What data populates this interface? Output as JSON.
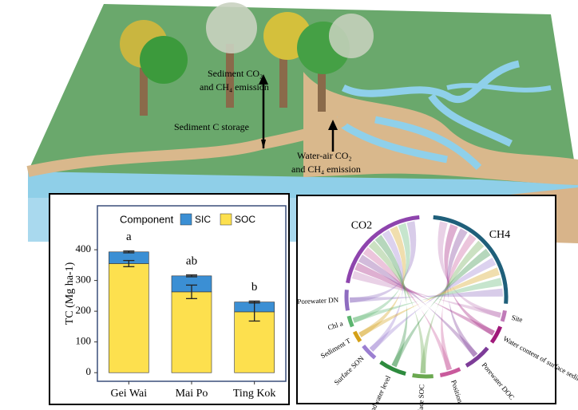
{
  "illustration": {
    "labels": [
      "Sediment CO₂",
      "and CH₄ emission",
      "Sediment C storage",
      "Water-air CO₂",
      "and CH₄ emission"
    ]
  },
  "chart_data": {
    "type": "bar",
    "stacked": true,
    "categories": [
      "Gei Wai",
      "Mai Po",
      "Ting Kok"
    ],
    "legend_title": "Component",
    "series": [
      {
        "name": "SOC",
        "color": "#fde04e",
        "values": [
          355,
          263,
          198
        ],
        "errors": [
          10,
          22,
          30
        ]
      },
      {
        "name": "SIC",
        "color": "#3b8fd4",
        "values": [
          38,
          52,
          32
        ],
        "errors": [
          3,
          3,
          3
        ]
      }
    ],
    "annotations": [
      "a",
      "ab",
      "b"
    ],
    "ylabel": "TC (Mg ha-1)",
    "ylim": [
      -28,
      543
    ],
    "yticks": [
      0,
      100,
      200,
      300,
      400
    ]
  },
  "chord": {
    "sectors": [
      "CO2",
      "CH4",
      "Site",
      "Water content of surface sediment",
      "Porewater DOC",
      "Position",
      "Surface SOC",
      "Groundwater level",
      "Surface SON",
      "Sediment T",
      "Chl a",
      "Porewater DN"
    ]
  }
}
